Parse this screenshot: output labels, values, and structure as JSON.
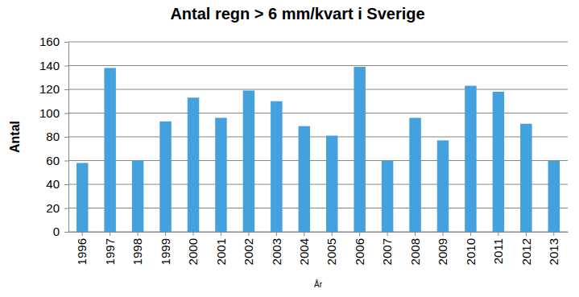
{
  "chart_data": {
    "type": "bar",
    "title": "Antal regn > 6 mm/kvart i Sverige",
    "x_label": "År",
    "y_label": "Antal",
    "categories": [
      "1996",
      "1997",
      "1998",
      "1999",
      "2000",
      "2001",
      "2002",
      "2003",
      "2004",
      "2005",
      "2006",
      "2007",
      "2008",
      "2009",
      "2010",
      "2011",
      "2012",
      "2013"
    ],
    "values": [
      58,
      138,
      60,
      93,
      113,
      96,
      119,
      110,
      89,
      81,
      139,
      60,
      96,
      77,
      123,
      118,
      91,
      60
    ],
    "color": "#45a0de",
    "ylim": [
      0,
      160
    ],
    "yticks": [
      0,
      20,
      40,
      60,
      80,
      100,
      120,
      140,
      160
    ],
    "grid": true
  }
}
